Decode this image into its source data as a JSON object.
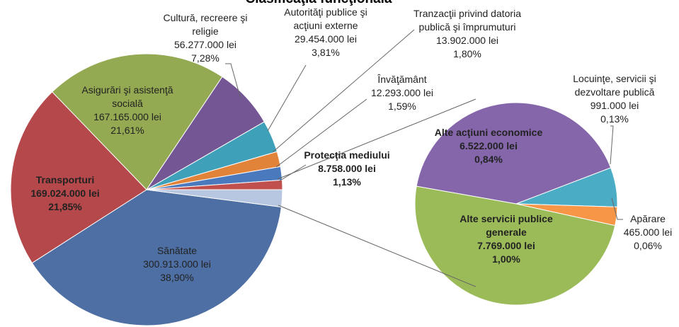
{
  "chart_data": {
    "type": "pie_of_pie",
    "title": "Clasificaţia funcţională",
    "slices": [
      {
        "name": "Sănătate",
        "value": 300913000,
        "value_label": "300.913.000 lei",
        "percent": 38.9,
        "percent_label": "38,90%",
        "color": "#4e6fa3"
      },
      {
        "name": "Transporturi",
        "value": 169024000,
        "value_label": "169.024.000 lei",
        "percent": 21.85,
        "percent_label": "21,85%",
        "color": "#b5484a"
      },
      {
        "name": "Asigurări şi asistenţă socială",
        "value": 167165000,
        "value_label": "167.165.000 lei",
        "percent": 21.61,
        "percent_label": "21,61%",
        "color": "#93aa52"
      },
      {
        "name": "Cultură, recreere şi religie",
        "value": 56277000,
        "value_label": "56.277.000 lei",
        "percent": 7.28,
        "percent_label": "7,28%",
        "color": "#735693"
      },
      {
        "name": "Autorităţi publice şi acţiuni externe",
        "value": 29454000,
        "value_label": "29.454.000 lei",
        "percent": 3.81,
        "percent_label": "3,81%",
        "color": "#3fa0ba"
      },
      {
        "name": "Tranzacţii privind datoria publică şi împrumuturi",
        "value": 13902000,
        "value_label": "13.902.000 lei",
        "percent": 1.8,
        "percent_label": "1,80%",
        "color": "#e2833a"
      },
      {
        "name": "Învăţământ",
        "value": 12293000,
        "value_label": "12.293.000 lei",
        "percent": 1.59,
        "percent_label": "1,59%",
        "color": "#4b79bd"
      },
      {
        "name": "Protecţia mediului",
        "value": 8758000,
        "value_label": "8.758.000 lei",
        "percent": 1.13,
        "percent_label": "1,13%",
        "color": "#c0504d"
      }
    ],
    "other_color": "#b7c6e1",
    "secondary_slices": [
      {
        "name": "Alte acţiuni economice",
        "value": 6522000,
        "value_label": "6.522.000 lei",
        "percent": 0.84,
        "percent_label": "0,84%",
        "color": "#8566ab"
      },
      {
        "name": "Locuinţe, servicii şi dezvoltare publică",
        "value": 991000,
        "value_label": "991.000 lei",
        "percent": 0.13,
        "percent_label": "0,13%",
        "color": "#4bacc6"
      },
      {
        "name": "Apărare",
        "value": 465000,
        "value_label": "465.000 lei",
        "percent": 0.06,
        "percent_label": "0,06%",
        "color": "#f79646"
      },
      {
        "name": "Alte servicii publice generale",
        "value": 7769000,
        "value_label": "7.769.000 lei",
        "percent": 1.0,
        "percent_label": "1,00%",
        "color": "#9bbb59"
      }
    ]
  }
}
